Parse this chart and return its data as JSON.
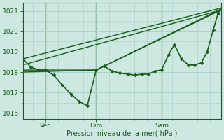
{
  "bg_color": "#cce8e0",
  "grid_color": "#aacfc8",
  "line_color": "#1a5c1a",
  "marker_color": "#1a5c1a",
  "xlabel": "Pression niveau de la mer( hPa )",
  "ylim": [
    1015.7,
    1021.4
  ],
  "yticks": [
    1016,
    1017,
    1018,
    1019,
    1020,
    1021
  ],
  "xtick_positions": [
    0.115,
    0.37,
    0.7
  ],
  "xtick_labels": [
    "Ven",
    "Dim",
    "Sam"
  ],
  "vline_positions": [
    0.115,
    0.37,
    0.7
  ],
  "series": [
    {
      "x": [
        0.0,
        0.04,
        0.08,
        0.115,
        0.155,
        0.2,
        0.245,
        0.285,
        0.325,
        0.37,
        0.41,
        0.45,
        0.49,
        0.53,
        0.565,
        0.6,
        0.635,
        0.665,
        0.7,
        0.735,
        0.765,
        0.8,
        0.835,
        0.865,
        0.9,
        0.93,
        0.96,
        0.985,
        1.0
      ],
      "y": [
        1018.65,
        1018.25,
        1018.1,
        1018.1,
        1017.85,
        1017.35,
        1016.9,
        1016.55,
        1016.35,
        1018.1,
        1018.3,
        1018.05,
        1017.95,
        1017.9,
        1017.85,
        1017.9,
        1017.9,
        1018.05,
        1018.1,
        1018.85,
        1019.35,
        1018.65,
        1018.35,
        1018.35,
        1018.45,
        1019.0,
        1020.05,
        1020.9,
        1021.1
      ],
      "lw": 1.2,
      "marker": "D",
      "ms": 2.4
    },
    {
      "x": [
        0.0,
        1.0
      ],
      "y": [
        1018.65,
        1021.15
      ],
      "lw": 1.0,
      "marker": null,
      "ms": 0
    },
    {
      "x": [
        0.0,
        1.0
      ],
      "y": [
        1018.35,
        1021.05
      ],
      "lw": 1.0,
      "marker": null,
      "ms": 0
    },
    {
      "x": [
        0.0,
        0.37,
        1.0
      ],
      "y": [
        1018.1,
        1018.1,
        1021.1
      ],
      "lw": 1.0,
      "marker": null,
      "ms": 0
    },
    {
      "x": [
        0.0,
        0.37,
        1.0
      ],
      "y": [
        1018.0,
        1018.1,
        1021.05
      ],
      "lw": 1.0,
      "marker": null,
      "ms": 0
    }
  ]
}
